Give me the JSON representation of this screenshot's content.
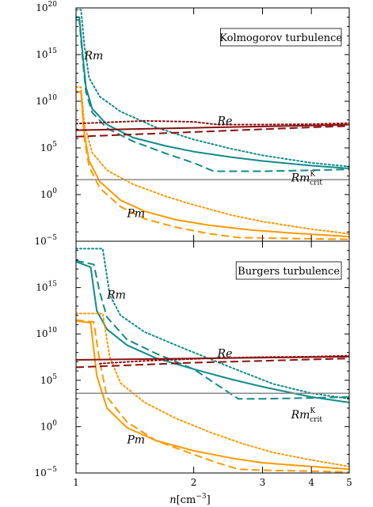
{
  "colors": {
    "teal": "#128a8a",
    "orange": "#ff9900",
    "darkred": "#8b1010",
    "gray": "#888888",
    "axis": "#000000"
  },
  "xlabel": "n[cm^-3]",
  "xlabel_parts": {
    "main": "n",
    "unit": "[cm",
    "exp": "−3",
    "close": "]"
  },
  "chart_data": [
    {
      "type": "line",
      "title": "Kolmogorov turbulence",
      "x_scale": "log",
      "y_scale": "log",
      "xlim": [
        1,
        5
      ],
      "ylim_exp": [
        -5,
        20
      ],
      "xticks": [
        1,
        2,
        3,
        4,
        5
      ],
      "xtick_labels": [
        "1",
        "2",
        "3",
        "4",
        "5"
      ],
      "yticks_exp": [
        -5,
        0,
        5,
        10,
        15,
        20
      ],
      "ytick_labels": [
        "10",
        "10",
        "10",
        "10",
        "10",
        "10"
      ],
      "ytick_exps": [
        "−5",
        "0",
        "5",
        "10",
        "15",
        "20"
      ],
      "legend": "top-right",
      "annotations": [
        {
          "text": "Rm",
          "x": 1.05,
          "y_exp": 14.5
        },
        {
          "text": "Re",
          "x": 2.3,
          "y_exp": 7.5
        },
        {
          "text": "Rm",
          "sub": "crit",
          "sup": "K",
          "x": 3.55,
          "y_exp": 1.4
        },
        {
          "text": "Pm",
          "x": 1.35,
          "y_exp": -2.4
        }
      ],
      "series": [
        {
          "color": "teal",
          "style": "solid",
          "x": [
            1,
            1.02,
            1.04,
            1.06,
            1.1,
            1.2,
            1.4,
            1.7,
            2.0,
            2.5,
            3.0,
            4.0,
            5.0
          ],
          "y_exp": [
            19,
            19,
            15,
            11.5,
            9.2,
            7.5,
            6.1,
            5.2,
            4.6,
            4.0,
            3.6,
            3.1,
            2.8
          ]
        },
        {
          "color": "teal",
          "style": "dashed",
          "x": [
            1,
            1.02,
            1.04,
            1.06,
            1.1,
            1.2,
            1.4,
            1.7,
            2.0,
            2.25,
            3.0,
            4.0,
            5.0
          ],
          "y_exp": [
            18.7,
            18.7,
            14.5,
            11,
            8.8,
            7.1,
            5.7,
            4.4,
            3.4,
            2.5,
            2.5,
            2.6,
            2.7
          ]
        },
        {
          "color": "teal",
          "style": "dotted",
          "x": [
            1,
            1.03,
            1.05,
            1.08,
            1.15,
            1.3,
            1.6,
            2.0,
            2.5,
            3.0,
            4.0,
            5.0
          ],
          "y_exp": [
            19.8,
            19.8,
            16,
            12.5,
            10.5,
            8.9,
            7.2,
            5.9,
            4.9,
            4.2,
            3.4,
            3.0
          ]
        },
        {
          "color": "orange",
          "style": "solid",
          "x": [
            1,
            1.03,
            1.05,
            1.08,
            1.15,
            1.3,
            1.5,
            1.8,
            2.2,
            2.8,
            3.5,
            5.0
          ],
          "y_exp": [
            11,
            11,
            6.5,
            3.6,
            1.4,
            -0.6,
            -1.8,
            -2.7,
            -3.3,
            -3.8,
            -4.1,
            -4.5
          ]
        },
        {
          "color": "orange",
          "style": "dashed",
          "x": [
            1,
            1.03,
            1.05,
            1.08,
            1.15,
            1.3,
            1.5,
            1.8,
            2.2,
            2.6,
            3.5,
            5.0
          ],
          "y_exp": [
            11,
            11,
            6,
            3,
            0.7,
            -1.3,
            -2.6,
            -3.5,
            -4.2,
            -4.6,
            -4.7,
            -4.8
          ]
        },
        {
          "color": "orange",
          "style": "dotted",
          "x": [
            1,
            1.03,
            1.05,
            1.1,
            1.2,
            1.4,
            1.7,
            2.0,
            2.5,
            3.0,
            4.0,
            5.0
          ],
          "y_exp": [
            11.5,
            11.5,
            7.5,
            4.5,
            2.6,
            1.1,
            -0.2,
            -1.1,
            -2.2,
            -2.9,
            -3.7,
            -4.2
          ]
        },
        {
          "color": "darkred",
          "style": "solid",
          "x": [
            1,
            2,
            3,
            4,
            5
          ],
          "y_exp": [
            6.9,
            7.15,
            7.3,
            7.4,
            7.5
          ]
        },
        {
          "color": "darkred",
          "style": "dashed",
          "x": [
            1,
            2,
            3,
            4,
            5
          ],
          "y_exp": [
            6.2,
            6.7,
            7.0,
            7.2,
            7.35
          ]
        },
        {
          "color": "darkred",
          "style": "dotted",
          "x": [
            1,
            1.5,
            2,
            2.3,
            3,
            4,
            5
          ],
          "y_exp": [
            7.6,
            7.9,
            7.8,
            7.5,
            7.5,
            7.55,
            7.65
          ]
        },
        {
          "color": "gray",
          "style": "solid",
          "x": [
            1,
            5
          ],
          "y_exp": [
            1.6,
            1.6
          ]
        }
      ]
    },
    {
      "type": "line",
      "title": "Burgers turbulence",
      "x_scale": "log",
      "y_scale": "log",
      "xlim": [
        1,
        5
      ],
      "ylim_exp": [
        -5,
        20
      ],
      "xticks": [
        1,
        2,
        3,
        4,
        5
      ],
      "xtick_labels": [
        "1",
        "2",
        "3",
        "4",
        "5"
      ],
      "yticks_exp": [
        -5,
        0,
        5,
        10,
        15
      ],
      "ytick_labels": [
        "10",
        "10",
        "10",
        "10",
        "10"
      ],
      "ytick_exps": [
        "−5",
        "0",
        "5",
        "10",
        "15"
      ],
      "legend": "top-right",
      "annotations": [
        {
          "text": "Rm",
          "x": 1.2,
          "y_exp": 13.8
        },
        {
          "text": "Re",
          "x": 2.3,
          "y_exp": 7.5
        },
        {
          "text": "Rm",
          "sub": "crit",
          "sup": "K",
          "x": 3.55,
          "y_exp": 0.9
        },
        {
          "text": "Pm",
          "x": 1.35,
          "y_exp": -1.8
        }
      ],
      "series": [
        {
          "color": "teal",
          "style": "solid",
          "x": [
            1,
            1.09,
            1.13,
            1.2,
            1.35,
            1.6,
            2.0,
            2.5,
            3.0,
            4.0,
            5.0
          ],
          "y_exp": [
            17.8,
            17.2,
            12.5,
            10.5,
            8.8,
            7.4,
            6.2,
            5.1,
            4.3,
            3.2,
            2.6
          ]
        },
        {
          "color": "teal",
          "style": "dashed",
          "x": [
            1,
            1.11,
            1.15,
            1.2,
            1.35,
            1.6,
            2.0,
            2.3,
            2.6,
            3.0,
            4.0,
            5.0
          ],
          "y_exp": [
            17.9,
            17.5,
            14.5,
            11.8,
            9.4,
            7.9,
            6.2,
            4.5,
            3.0,
            3.0,
            3.1,
            3.2
          ]
        },
        {
          "color": "teal",
          "style": "dotted",
          "x": [
            1,
            1.17,
            1.22,
            1.3,
            1.5,
            1.8,
            2.2,
            2.7,
            3.2,
            4.0,
            5.0
          ],
          "y_exp": [
            19.2,
            19.2,
            14.2,
            12,
            10.2,
            8.8,
            7.3,
            5.8,
            4.6,
            3.6,
            3.0
          ]
        },
        {
          "color": "orange",
          "style": "solid",
          "x": [
            1,
            1.09,
            1.13,
            1.2,
            1.35,
            1.6,
            2.0,
            2.5,
            3.0,
            4.0,
            5.0
          ],
          "y_exp": [
            11.4,
            11.2,
            5.5,
            2,
            -0.1,
            -1.5,
            -2.6,
            -3.4,
            -3.9,
            -4.3,
            -4.6
          ]
        },
        {
          "color": "orange",
          "style": "dashed",
          "x": [
            1,
            1.11,
            1.15,
            1.2,
            1.35,
            1.6,
            2.0,
            2.3,
            2.6,
            3.0,
            4.0,
            5.0
          ],
          "y_exp": [
            11.5,
            11.3,
            7,
            3.2,
            0.5,
            -1.5,
            -3,
            -3.9,
            -4.6,
            -4.7,
            -4.8,
            -4.9
          ]
        },
        {
          "color": "orange",
          "style": "dotted",
          "x": [
            1,
            1.17,
            1.22,
            1.3,
            1.5,
            1.8,
            2.2,
            2.7,
            3.2,
            4.0,
            5.0
          ],
          "y_exp": [
            12.2,
            12.2,
            7.5,
            4.7,
            2.6,
            0.9,
            -0.6,
            -1.9,
            -2.8,
            -3.6,
            -4.3
          ]
        },
        {
          "color": "darkred",
          "style": "solid",
          "x": [
            1,
            2,
            3,
            4,
            5
          ],
          "y_exp": [
            7.2,
            7.35,
            7.45,
            7.5,
            7.55
          ]
        },
        {
          "color": "darkred",
          "style": "dashed",
          "x": [
            1,
            2,
            3,
            4,
            5
          ],
          "y_exp": [
            6.4,
            6.9,
            7.1,
            7.25,
            7.35
          ]
        },
        {
          "color": "darkred",
          "style": "dotted",
          "x": [
            1.15,
            1.5,
            2,
            2.3,
            3,
            4,
            5
          ],
          "y_exp": [
            6.8,
            7.1,
            7.3,
            7.4,
            7.5,
            7.55,
            7.65
          ]
        },
        {
          "color": "gray",
          "style": "solid",
          "x": [
            1,
            5
          ],
          "y_exp": [
            3.6,
            3.6
          ]
        }
      ]
    }
  ]
}
